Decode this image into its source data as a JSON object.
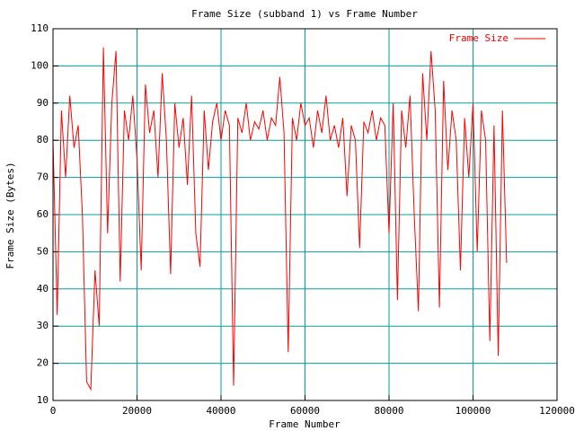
{
  "chart_data": {
    "type": "line",
    "title": "Frame Size (subband 1) vs Frame Number",
    "xlabel": "Frame Number",
    "ylabel": "Frame Size (Bytes)",
    "x": [
      0,
      1000,
      2000,
      3000,
      4000,
      5000,
      6000,
      7000,
      8000,
      9000,
      10000,
      11000,
      12000,
      13000,
      14000,
      15000,
      16000,
      17000,
      18000,
      19000,
      20000,
      21000,
      22000,
      23000,
      24000,
      25000,
      26000,
      27000,
      28000,
      29000,
      30000,
      31000,
      32000,
      33000,
      34000,
      35000,
      36000,
      37000,
      38000,
      39000,
      40000,
      41000,
      42000,
      43000,
      44000,
      45000,
      46000,
      47000,
      48000,
      49000,
      50000,
      51000,
      52000,
      53000,
      54000,
      55000,
      56000,
      57000,
      58000,
      59000,
      60000,
      61000,
      62000,
      63000,
      64000,
      65000,
      66000,
      67000,
      68000,
      69000,
      70000,
      71000,
      72000,
      73000,
      74000,
      75000,
      76000,
      77000,
      78000,
      79000,
      80000,
      81000,
      82000,
      83000,
      84000,
      85000,
      86000,
      87000,
      88000,
      89000,
      90000,
      91000,
      92000,
      93000,
      94000,
      95000,
      96000,
      97000,
      98000,
      99000,
      100000,
      101000,
      102000,
      103000,
      104000,
      105000,
      106000,
      107000,
      108000
    ],
    "series": [
      {
        "name": "Frame Size",
        "color": "#ff0000",
        "values": [
          80,
          33,
          88,
          70,
          92,
          78,
          84,
          60,
          15,
          13,
          45,
          30,
          105,
          55,
          90,
          104,
          42,
          88,
          80,
          92,
          75,
          45,
          95,
          82,
          88,
          70,
          98,
          80,
          44,
          90,
          78,
          86,
          68,
          92,
          55,
          46,
          88,
          72,
          85,
          90,
          80,
          88,
          84,
          14,
          86,
          82,
          90,
          80,
          85,
          83,
          88,
          80,
          86,
          84,
          97,
          82,
          23,
          86,
          80,
          90,
          84,
          86,
          78,
          88,
          82,
          92,
          80,
          84,
          78,
          86,
          65,
          84,
          80,
          51,
          85,
          82,
          88,
          80,
          86,
          84,
          55,
          90,
          37,
          88,
          78,
          92,
          60,
          34,
          98,
          80,
          104,
          88,
          35,
          96,
          72,
          88,
          80,
          45,
          86,
          70,
          90,
          50,
          88,
          80,
          26,
          84,
          22,
          88,
          47
        ]
      }
    ],
    "xlim": [
      0,
      120000
    ],
    "xticks": [
      0,
      20000,
      40000,
      60000,
      80000,
      100000,
      120000
    ],
    "ylim": [
      10,
      110
    ],
    "yticks": [
      10,
      20,
      30,
      40,
      50,
      60,
      70,
      80,
      90,
      100,
      110
    ],
    "grid": true,
    "grid_color": "#00a0a0",
    "legend": "upper right"
  }
}
